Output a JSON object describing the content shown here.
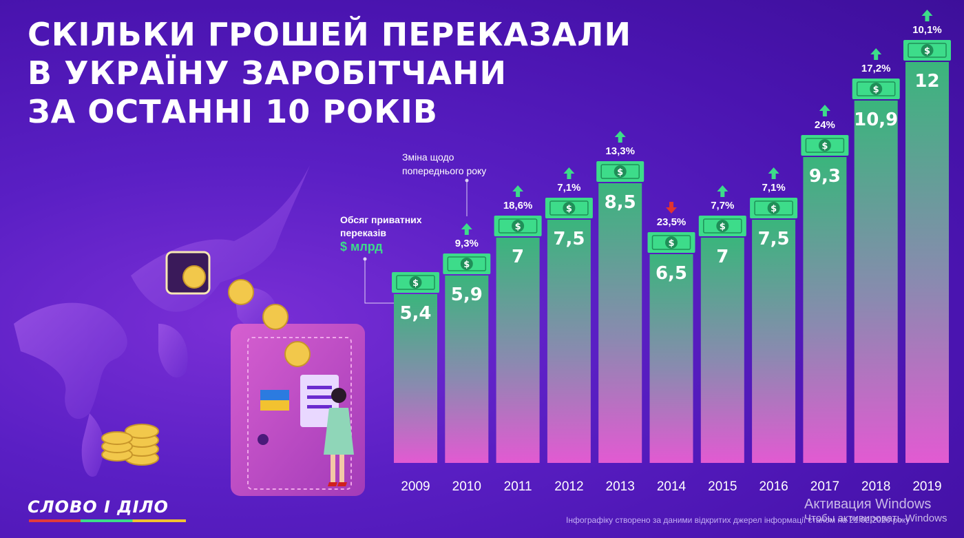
{
  "title_lines": [
    "Скільки грошей переказали",
    "в Україну заробітчани",
    "за останні 10 років"
  ],
  "legend": {
    "change_label": "Зміна щодо попереднього року",
    "volume_label": "Обсяг приватних переказів",
    "unit_label": "$ млрд"
  },
  "logo": "СЛОВО І ДІЛО",
  "footnote": "Інфографіку створено за даними відкритих джерел інформації станом на 21.02.2020 року",
  "activation": {
    "title": "Активация Windows",
    "subtitle": "Чтобы активировать Windows"
  },
  "colors": {
    "bar_top": "#3ab57c",
    "bar_bottom": "#e25ad2",
    "bill": "#3ddc8a",
    "up_arrow": "#3ddc8a",
    "down_arrow": "#e2342f"
  },
  "icons": [
    "dollar-bill-icon",
    "arrow-up-icon",
    "arrow-down-icon",
    "world-map",
    "wallet",
    "coins"
  ],
  "chart_data": {
    "type": "bar",
    "categories": [
      "2009",
      "2010",
      "2011",
      "2012",
      "2013",
      "2014",
      "2015",
      "2016",
      "2017",
      "2018",
      "2019"
    ],
    "values": [
      5.4,
      5.9,
      7,
      7.5,
      8.5,
      6.5,
      7,
      7.5,
      9.3,
      10.9,
      12
    ],
    "value_labels": [
      "5,4",
      "5,9",
      "7",
      "7,5",
      "8,5",
      "6,5",
      "7",
      "7,5",
      "9,3",
      "10,9",
      "12"
    ],
    "changes": [
      {
        "label": "",
        "direction": "none"
      },
      {
        "label": "9,3%",
        "direction": "up"
      },
      {
        "label": "18,6%",
        "direction": "up"
      },
      {
        "label": "7,1%",
        "direction": "up"
      },
      {
        "label": "13,3%",
        "direction": "up"
      },
      {
        "label": "23,5%",
        "direction": "down"
      },
      {
        "label": "7,7%",
        "direction": "up"
      },
      {
        "label": "7,1%",
        "direction": "up"
      },
      {
        "label": "24%",
        "direction": "up"
      },
      {
        "label": "17,2%",
        "direction": "up"
      },
      {
        "label": "10,1%",
        "direction": "up"
      }
    ],
    "ylim": [
      0,
      12
    ],
    "grid": false,
    "legend": "left"
  }
}
